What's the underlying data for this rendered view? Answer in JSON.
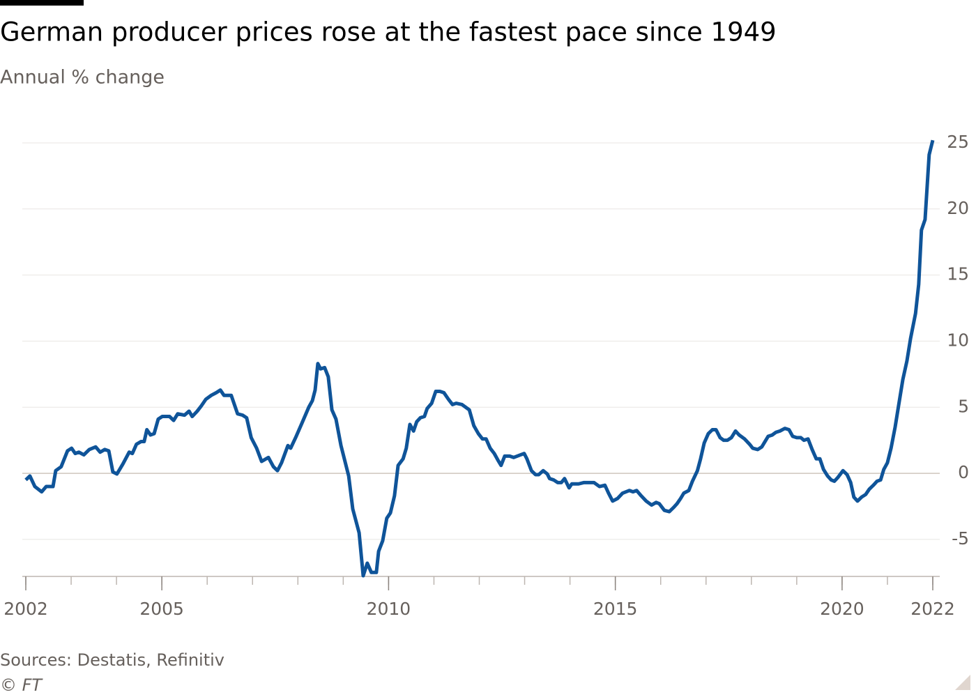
{
  "chart_data": {
    "type": "line",
    "title": "German producer prices rose at the fastest pace since 1949",
    "subtitle": "Annual % change",
    "source": "Sources: Destatis, Refinitiv",
    "credit": "© FT",
    "xlim": [
      2002,
      2022
    ],
    "xticks": [
      2002,
      2005,
      2010,
      2015,
      2020,
      2022
    ],
    "xminor_ticks": [
      2002,
      2003,
      2004,
      2005,
      2006,
      2007,
      2008,
      2009,
      2010,
      2011,
      2012,
      2013,
      2014,
      2015,
      2016,
      2017,
      2018,
      2019,
      2020,
      2021,
      2022
    ],
    "ylim": [
      -7.8,
      26
    ],
    "yticks": [
      -5,
      0,
      5,
      10,
      15,
      20,
      25
    ],
    "grid": true,
    "series": [
      {
        "name": "Producer prices",
        "color": "#0f5499",
        "x": [
          2002.0,
          2002.09,
          2002.2,
          2002.35,
          2002.45,
          2002.6,
          2002.66,
          2002.78,
          2002.92,
          2003.01,
          2003.09,
          2003.17,
          2003.28,
          2003.4,
          2003.54,
          2003.64,
          2003.74,
          2003.83,
          2003.92,
          2004.01,
          2004.14,
          2004.28,
          2004.35,
          2004.44,
          2004.54,
          2004.61,
          2004.67,
          2004.75,
          2004.83,
          2004.92,
          2005.01,
          2005.17,
          2005.26,
          2005.35,
          2005.5,
          2005.6,
          2005.67,
          2005.78,
          2005.87,
          2005.97,
          2006.09,
          2006.2,
          2006.29,
          2006.37,
          2006.53,
          2006.67,
          2006.78,
          2006.87,
          2006.97,
          2007.09,
          2007.2,
          2007.35,
          2007.46,
          2007.55,
          2007.64,
          2007.78,
          2007.84,
          2007.95,
          2008.09,
          2008.24,
          2008.32,
          2008.38,
          2008.44,
          2008.5,
          2008.59,
          2008.67,
          2008.75,
          2008.84,
          2008.95,
          2009.12,
          2009.21,
          2009.35,
          2009.44,
          2009.53,
          2009.62,
          2009.73,
          2009.78,
          2009.87,
          2009.96,
          2010.04,
          2010.13,
          2010.21,
          2010.32,
          2010.39,
          2010.47,
          2010.55,
          2010.62,
          2010.7,
          2010.79,
          2010.85,
          2010.95,
          2011.04,
          2011.13,
          2011.22,
          2011.32,
          2011.41,
          2011.49,
          2011.62,
          2011.78,
          2011.88,
          2011.98,
          2012.07,
          2012.15,
          2012.24,
          2012.33,
          2012.41,
          2012.48,
          2012.56,
          2012.67,
          2012.76,
          2012.91,
          2012.99,
          2013.05,
          2013.15,
          2013.24,
          2013.31,
          2013.41,
          2013.5,
          2013.55,
          2013.64,
          2013.73,
          2013.81,
          2013.88,
          2013.98,
          2014.04,
          2014.19,
          2014.31,
          2014.44,
          2014.53,
          2014.65,
          2014.77,
          2014.85,
          2014.94,
          2015.05,
          2015.16,
          2015.31,
          2015.39,
          2015.47,
          2015.57,
          2015.68,
          2015.8,
          2015.9,
          2015.97,
          2016.08,
          2016.19,
          2016.28,
          2016.36,
          2016.44,
          2016.51,
          2016.62,
          2016.7,
          2016.81,
          2016.88,
          2016.96,
          2017.05,
          2017.14,
          2017.22,
          2017.31,
          2017.39,
          2017.47,
          2017.56,
          2017.65,
          2017.73,
          2017.85,
          2017.96,
          2018.03,
          2018.14,
          2018.23,
          2018.3,
          2018.37,
          2018.46,
          2018.54,
          2018.63,
          2018.74,
          2018.83,
          2018.91,
          2019.0,
          2019.09,
          2019.16,
          2019.25,
          2019.34,
          2019.43,
          2019.51,
          2019.59,
          2019.68,
          2019.76,
          2019.83,
          2019.91,
          2020.02,
          2020.11,
          2020.19,
          2020.26,
          2020.34,
          2020.43,
          2020.52,
          2020.6,
          2020.69,
          2020.77,
          2020.85,
          2020.92,
          2021.0,
          2021.08,
          2021.17,
          2021.25,
          2021.34,
          2021.43,
          2021.51,
          2021.62,
          2021.69,
          2021.75,
          2021.83,
          2021.92,
          2022.0
        ],
        "values": [
          -0.5,
          -0.2,
          -1.0,
          -1.4,
          -1.0,
          -1.0,
          0.2,
          0.5,
          1.7,
          1.9,
          1.5,
          1.6,
          1.4,
          1.8,
          2.0,
          1.6,
          1.8,
          1.7,
          0.1,
          -0.05,
          0.7,
          1.6,
          1.5,
          2.2,
          2.4,
          2.4,
          3.3,
          2.9,
          3.0,
          4.1,
          4.3,
          4.3,
          4.0,
          4.5,
          4.4,
          4.7,
          4.3,
          4.7,
          5.1,
          5.6,
          5.9,
          6.1,
          6.3,
          5.9,
          5.9,
          4.5,
          4.4,
          4.2,
          2.7,
          1.9,
          0.9,
          1.2,
          0.5,
          0.2,
          0.8,
          2.1,
          1.9,
          2.7,
          3.8,
          5.0,
          5.5,
          6.3,
          8.3,
          7.9,
          8.0,
          7.3,
          4.8,
          4.1,
          2.1,
          -0.2,
          -2.7,
          -4.5,
          -7.75,
          -6.8,
          -7.5,
          -7.5,
          -5.9,
          -5.1,
          -3.4,
          -3.0,
          -1.7,
          0.6,
          1.1,
          1.9,
          3.7,
          3.2,
          3.9,
          4.2,
          4.3,
          4.9,
          5.3,
          6.2,
          6.2,
          6.1,
          5.6,
          5.2,
          5.3,
          5.2,
          4.8,
          3.6,
          3.0,
          2.6,
          2.6,
          1.9,
          1.5,
          1.0,
          0.6,
          1.3,
          1.3,
          1.2,
          1.4,
          1.5,
          1.1,
          0.2,
          -0.1,
          -0.1,
          0.2,
          -0.05,
          -0.4,
          -0.5,
          -0.7,
          -0.7,
          -0.4,
          -1.1,
          -0.8,
          -0.8,
          -0.7,
          -0.7,
          -0.7,
          -1.0,
          -0.9,
          -1.5,
          -2.1,
          -1.9,
          -1.5,
          -1.3,
          -1.4,
          -1.3,
          -1.7,
          -2.1,
          -2.4,
          -2.2,
          -2.3,
          -2.8,
          -2.9,
          -2.6,
          -2.3,
          -1.9,
          -1.5,
          -1.3,
          -0.6,
          0.2,
          1.1,
          2.3,
          3.0,
          3.3,
          3.3,
          2.7,
          2.5,
          2.5,
          2.7,
          3.2,
          2.9,
          2.6,
          2.2,
          1.9,
          1.8,
          2.0,
          2.4,
          2.8,
          2.9,
          3.1,
          3.2,
          3.4,
          3.3,
          2.8,
          2.7,
          2.7,
          2.5,
          2.6,
          1.8,
          1.1,
          1.1,
          0.3,
          -0.2,
          -0.5,
          -0.6,
          -0.3,
          0.2,
          -0.1,
          -0.7,
          -1.8,
          -2.1,
          -1.8,
          -1.6,
          -1.2,
          -0.9,
          -0.6,
          -0.5,
          0.3,
          0.8,
          1.9,
          3.5,
          5.2,
          7.1,
          8.5,
          10.2,
          12.1,
          14.3,
          18.4,
          19.2,
          24.1,
          25.2
        ]
      }
    ]
  }
}
